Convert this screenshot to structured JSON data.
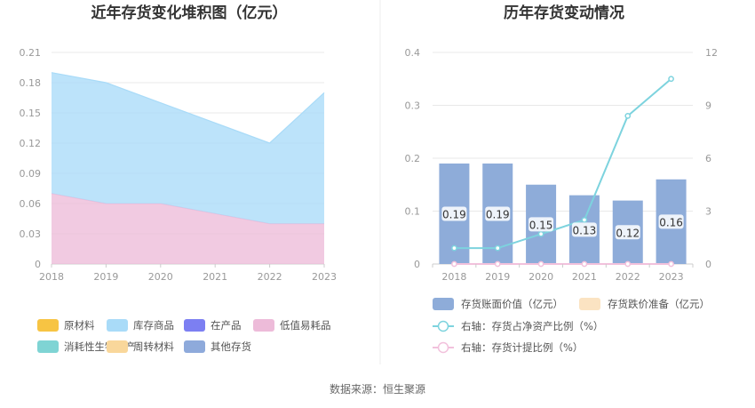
{
  "source_text": "数据来源：恒生聚源",
  "chart_data": [
    {
      "type": "area",
      "title": "近年存货变化堆积图（亿元）",
      "x": [
        "2018",
        "2019",
        "2020",
        "2021",
        "2022",
        "2023"
      ],
      "ylim": [
        0,
        0.21
      ],
      "y_ticks": [
        "0",
        "0.03",
        "0.06",
        "0.09",
        "0.12",
        "0.15",
        "0.18",
        "0.21"
      ],
      "stacked": true,
      "grid": true,
      "legend_position": "bottom",
      "series": [
        {
          "name": "原材料",
          "color": "#F7C443",
          "values": [
            0,
            0,
            0,
            0,
            0,
            0
          ]
        },
        {
          "name": "库存商品",
          "color": "#A9DBF8",
          "values": [
            0.12,
            0.12,
            0.1,
            0.09,
            0.08,
            0.13
          ]
        },
        {
          "name": "在产品",
          "color": "#7C7FF2",
          "values": [
            0,
            0,
            0,
            0,
            0,
            0
          ]
        },
        {
          "name": "低值易耗品",
          "color": "#EDBBD9",
          "values": [
            0.07,
            0.06,
            0.06,
            0.05,
            0.04,
            0.04
          ]
        },
        {
          "name": "消耗性生物资产",
          "color": "#7FD4D4",
          "values": [
            0,
            0,
            0,
            0,
            0,
            0
          ]
        },
        {
          "name": "周转材料",
          "color": "#F9D79B",
          "values": [
            0,
            0,
            0,
            0,
            0,
            0
          ]
        },
        {
          "name": "其他存货",
          "color": "#8EAADB",
          "values": [
            0,
            0,
            0,
            0,
            0,
            0
          ]
        }
      ]
    },
    {
      "type": "bar",
      "title": "历年存货变动情况",
      "categories": [
        "2018",
        "2019",
        "2020",
        "2021",
        "2022",
        "2023"
      ],
      "ylim": [
        0,
        0.4
      ],
      "y_ticks": [
        "0",
        "0.1",
        "0.2",
        "0.3",
        "0.4"
      ],
      "y2lim": [
        0,
        12
      ],
      "y2_ticks": [
        "0",
        "3",
        "6",
        "9",
        "12"
      ],
      "grid": true,
      "legend_position": "bottom",
      "series": [
        {
          "name": "存货账面价值（亿元）",
          "kind": "bar",
          "axis": "left",
          "color": "#8EACD9",
          "values": [
            0.19,
            0.19,
            0.15,
            0.13,
            0.12,
            0.16
          ],
          "labels": [
            "0.19",
            "0.19",
            "0.15",
            "0.13",
            "0.12",
            "0.16"
          ]
        },
        {
          "name": "存货跌价准备（亿元）",
          "kind": "bar",
          "axis": "left",
          "color": "#FBE3C2",
          "values": [
            0,
            0,
            0,
            0,
            0,
            0
          ]
        },
        {
          "name": "右轴：存货占净资产比例（%）",
          "kind": "line",
          "axis": "right",
          "color": "#7DD3DE",
          "values": [
            0.9,
            0.9,
            1.7,
            2.5,
            8.4,
            10.5
          ]
        },
        {
          "name": "右轴：存货计提比例（%）",
          "kind": "line",
          "axis": "right",
          "color": "#F2C1DC",
          "values": [
            0,
            0,
            0,
            0,
            0,
            0
          ]
        }
      ]
    }
  ]
}
